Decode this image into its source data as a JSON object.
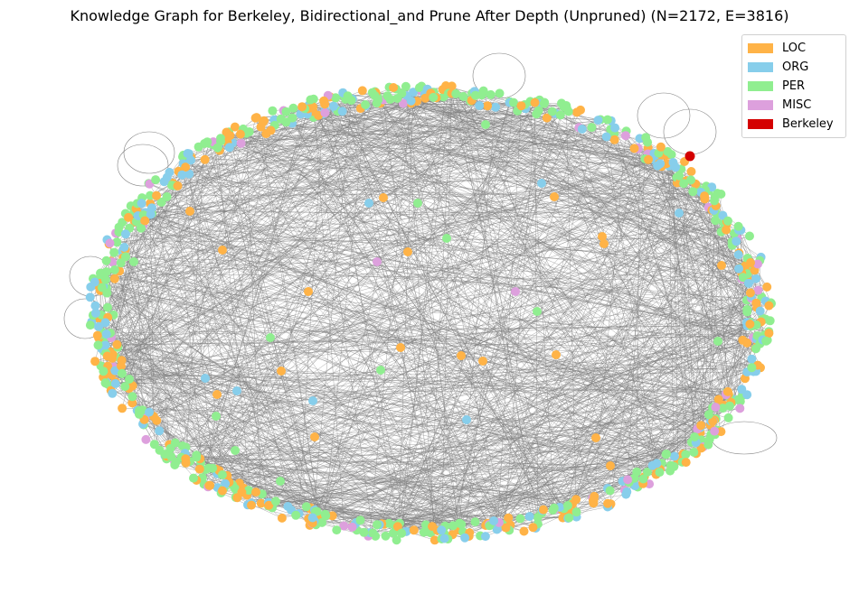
{
  "title": "Knowledge Graph for Berkeley, Bidirectional_and Prune After Depth (Unpruned) (N=2172, E=3816)",
  "edge_color": "#808080",
  "legend": [
    {
      "label": "LOC",
      "color": "#ffb347"
    },
    {
      "label": "ORG",
      "color": "#87ceeb"
    },
    {
      "label": "PER",
      "color": "#90ee90"
    },
    {
      "label": "MISC",
      "color": "#dda0dd"
    },
    {
      "label": "Berkeley",
      "color": "#d40000"
    }
  ]
}
